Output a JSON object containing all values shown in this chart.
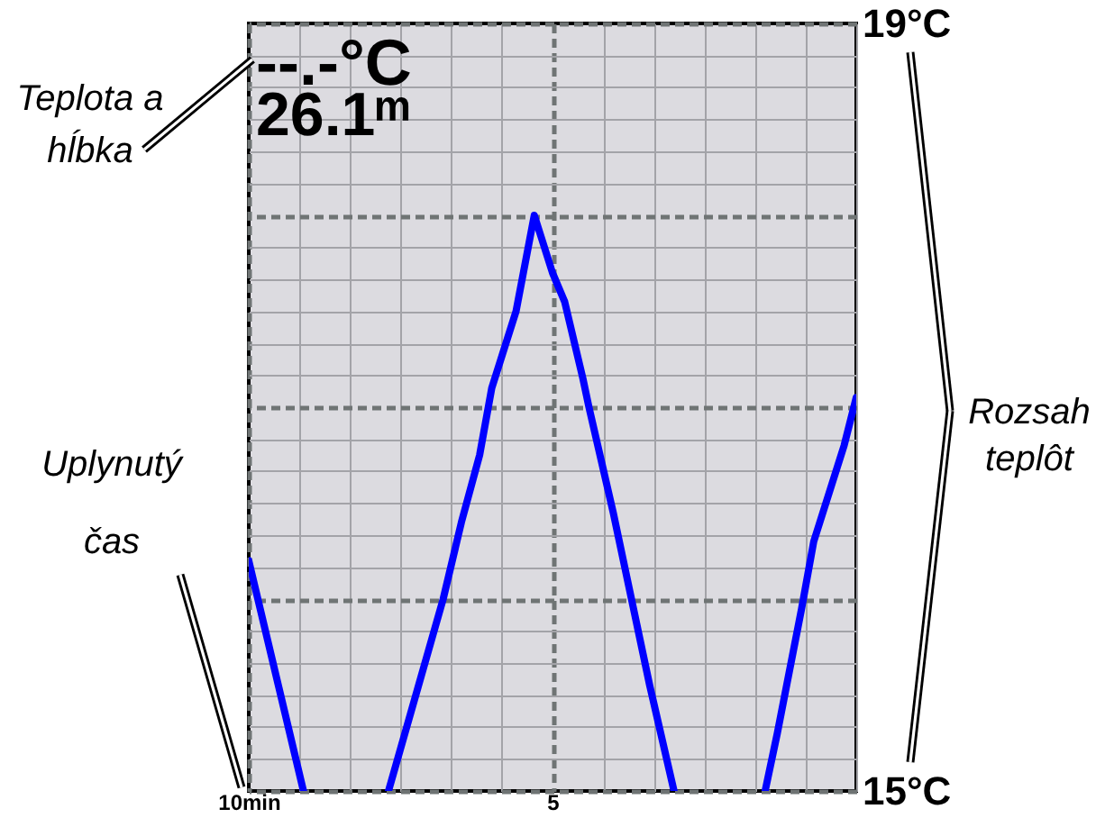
{
  "chart_data": {
    "type": "line",
    "x": [
      10,
      9.1,
      8.4,
      7.7,
      6.8,
      6.5,
      6.2,
      6.0,
      5.6,
      5.3,
      5.0,
      4.8,
      4.5,
      4.4,
      4.0,
      3.7,
      3.4,
      3.0,
      2.2,
      1.5,
      1.3,
      0.9,
      0.7,
      0.2,
      0
    ],
    "series": [
      {
        "color": "#0000ff",
        "values": [
          16.2,
          15.0,
          null,
          15.0,
          16.0,
          16.4,
          16.75,
          17.1,
          17.5,
          18.0,
          17.7,
          17.55,
          17.15,
          17.0,
          16.45,
          16.0,
          15.55,
          15.0,
          null,
          15.0,
          15.3,
          15.95,
          16.3,
          16.8,
          17.05
        ]
      }
    ],
    "xlim": [
      10,
      0
    ],
    "xticks": [
      {
        "value": 10,
        "label": "10min"
      },
      5
    ],
    "ylim": [
      15,
      19
    ],
    "yticks": [
      {
        "value": 19,
        "label": "19°C"
      },
      {
        "value": 18,
        "label": null
      },
      {
        "value": 17,
        "label": null
      },
      {
        "value": 16,
        "label": null
      },
      {
        "value": 15,
        "label": "15°C"
      }
    ],
    "grid": true,
    "annotations": [
      "--.-°C",
      "26.1ᵐ",
      "Teplota a hĺbka",
      "Uplynutý čas",
      "Rozsah teplôt"
    ]
  }
}
